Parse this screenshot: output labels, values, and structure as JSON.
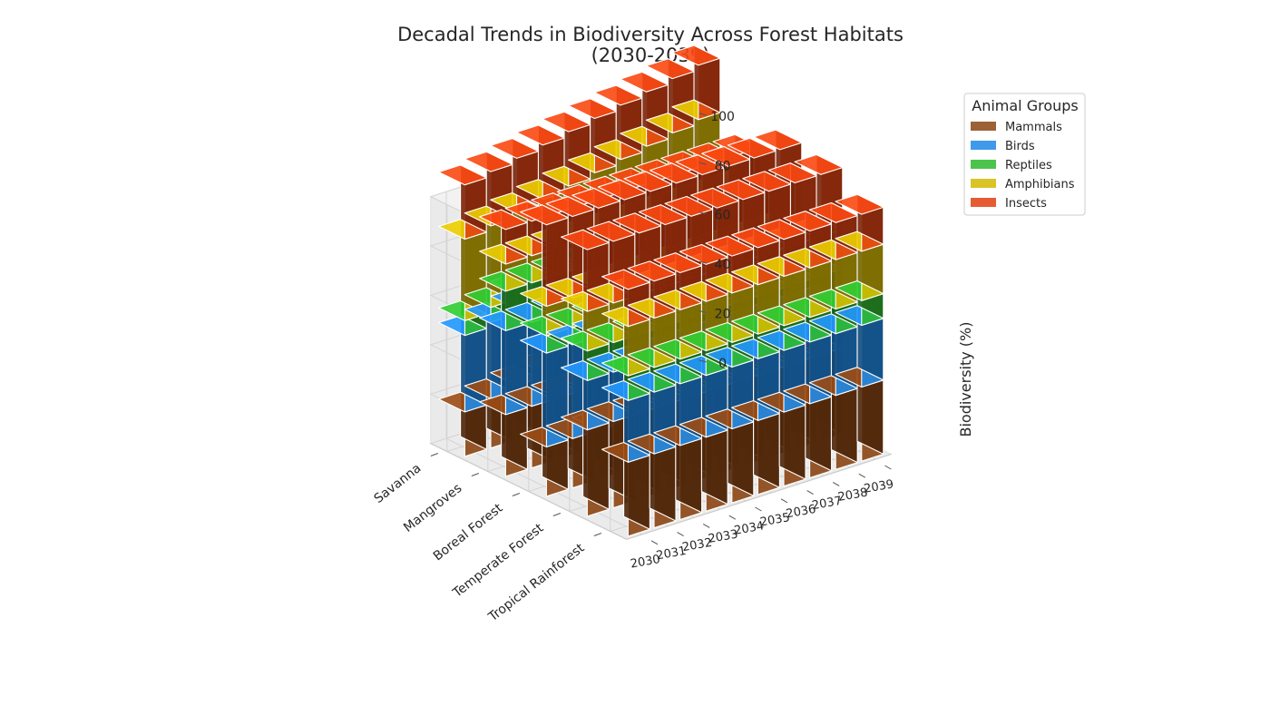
{
  "chart_data": {
    "type": "bar3d-stacked",
    "title_line1": "Decadal Trends in Biodiversity Across Forest Habitats",
    "title_line2": "(2030-2039)",
    "zlabel": "Biodiversity (%)",
    "zlim": [
      0,
      100
    ],
    "z_ticks": [
      "0",
      "20",
      "40",
      "60",
      "80",
      "100"
    ],
    "habitats": [
      "Tropical Rainforest",
      "Temperate Forest",
      "Boreal Forest",
      "Mangroves",
      "Savanna"
    ],
    "years": [
      "2030",
      "2031",
      "2032",
      "2033",
      "2034",
      "2035",
      "2036",
      "2037",
      "2038",
      "2039"
    ],
    "legend": {
      "title": "Animal Groups",
      "position": "upper-right"
    },
    "series": [
      {
        "name": "Mammals",
        "color": "#8b4513",
        "values": [
          [
            30,
            30,
            30,
            30,
            30,
            30,
            30,
            30,
            30,
            30
          ],
          [
            35,
            35,
            35,
            35,
            35,
            35,
            35,
            35,
            35,
            35
          ],
          [
            20,
            20,
            20,
            20,
            20,
            20,
            20,
            20,
            20,
            20
          ],
          [
            25,
            25,
            25,
            25,
            25,
            25,
            25,
            25,
            25,
            25
          ],
          [
            18,
            20,
            22,
            24,
            26,
            28,
            30,
            32,
            34,
            36
          ]
        ]
      },
      {
        "name": "Birds",
        "color": "#1e88e5",
        "values": [
          [
            25,
            25,
            25,
            25,
            25,
            25,
            25,
            25,
            25,
            25
          ],
          [
            20,
            20,
            20,
            20,
            20,
            20,
            20,
            20,
            20,
            20
          ],
          [
            38,
            38,
            38,
            38,
            38,
            38,
            38,
            38,
            38,
            38
          ],
          [
            34,
            34,
            34,
            34,
            34,
            34,
            34,
            34,
            34,
            34
          ],
          [
            31,
            31,
            31,
            31,
            31,
            31,
            31,
            31,
            31,
            31
          ]
        ]
      },
      {
        "name": "Reptiles",
        "color": "#2db82d",
        "values": [
          [
            10,
            10,
            10,
            10,
            10,
            10,
            10,
            10,
            10,
            10
          ],
          [
            12,
            12,
            12,
            12,
            12,
            12,
            12,
            12,
            12,
            12
          ],
          [
            7,
            7,
            7,
            7,
            7,
            7,
            7,
            7,
            7,
            7
          ],
          [
            16,
            16,
            16,
            16,
            16,
            16,
            16,
            16,
            16,
            16
          ],
          [
            6,
            6,
            6,
            6,
            6,
            6,
            6,
            6,
            6,
            6
          ]
        ]
      },
      {
        "name": "Amphibians",
        "color": "#d4b800",
        "values": [
          [
            20,
            20,
            20,
            20,
            20,
            20,
            20,
            20,
            20,
            20
          ],
          [
            16,
            16,
            16,
            16,
            16,
            16,
            16,
            16,
            16,
            16
          ],
          [
            12,
            12,
            12,
            12,
            12,
            12,
            12,
            12,
            12,
            12
          ],
          [
            11,
            11,
            11,
            11,
            11,
            11,
            11,
            11,
            11,
            11
          ],
          [
            33,
            33,
            33,
            33,
            33,
            33,
            33,
            33,
            33,
            33
          ]
        ]
      },
      {
        "name": "Insects",
        "color": "#e04010",
        "values": [
          [
            15,
            15,
            15,
            15,
            15,
            15,
            15,
            15,
            15,
            15
          ],
          [
            25,
            25,
            25,
            25,
            25,
            25,
            25,
            25,
            25,
            25
          ],
          [
            33,
            33,
            33,
            33,
            33,
            33,
            33,
            33,
            33,
            33
          ],
          [
            14,
            14,
            14,
            14,
            14,
            14,
            14,
            14,
            14,
            14
          ],
          [
            22,
            22,
            22,
            22,
            22,
            22,
            22,
            22,
            22,
            22
          ]
        ]
      }
    ]
  }
}
